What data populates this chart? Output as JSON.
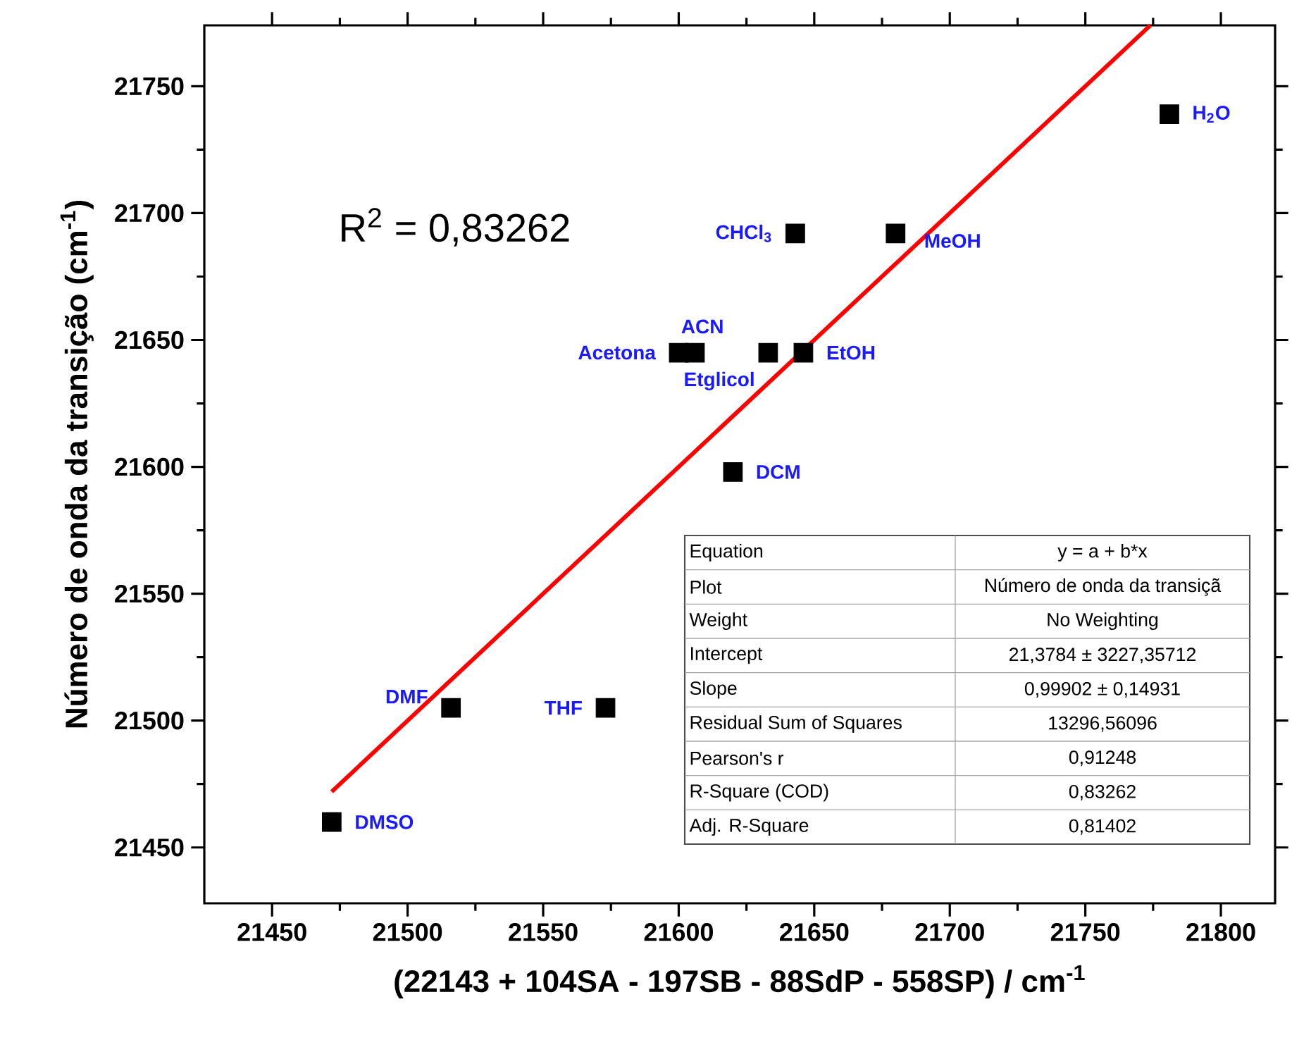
{
  "chart_data": {
    "type": "scatter",
    "xlabel": "(22143 + 104SA - 197SB - 88SdP - 558SP) / cm$^{-1}$",
    "ylabel": "Número de onda da transição (cm$^{-1}$)",
    "xlim": [
      21425,
      21820
    ],
    "ylim": [
      21428,
      21774
    ],
    "xticks": [
      21450,
      21500,
      21550,
      21600,
      21650,
      21700,
      21750,
      21800
    ],
    "yticks": [
      21450,
      21500,
      21550,
      21600,
      21650,
      21700,
      21750
    ],
    "series": [
      {
        "type": "scatter",
        "color": "#000000",
        "marker": "square",
        "x": [
          21472,
          21516,
          21573,
          21620,
          21600,
          21606,
          21633,
          21646,
          21643,
          21680,
          21781
        ],
        "values": [
          21460,
          21505,
          21505,
          21598,
          21645,
          21645,
          21645,
          21645,
          21692,
          21692,
          21739
        ]
      },
      {
        "type": "line",
        "color": "#ff0000",
        "x": [
          21472,
          21774
        ],
        "values": [
          21472,
          21774
        ]
      }
    ],
    "annotations": [
      "R$^{2}$ = 0,83262",
      "Equation",
      "y = a + b*x",
      "Plot",
      "Número de onda da transiçã",
      "Weight",
      "No Weighting",
      "Intercept",
      "21,3784 ± 3227,35712",
      "Slope",
      "0,99902 ± 0,14931",
      "Residual Sum of Squares",
      "13296,56096",
      "Pearson's r",
      "0,91248",
      "R-Square (COD)",
      "0,83262",
      "Adj. R-Square",
      "0,81402",
      {
        "text": "DMSO",
        "x": 21472,
        "y": 21460
      },
      {
        "text": "DMF",
        "x": 21516,
        "y": 21505
      },
      {
        "text": "THF",
        "x": 21573,
        "y": 21505
      },
      {
        "text": "DCM",
        "x": 21620,
        "y": 21598
      },
      {
        "text": "Acetona",
        "x": 21600,
        "y": 21645
      },
      {
        "text": "ACN",
        "x": 21606,
        "y": 21645
      },
      {
        "text": "Etglicol",
        "x": 21633,
        "y": 21645
      },
      {
        "text": "EtOH",
        "x": 21646,
        "y": 21645
      },
      {
        "text": "CHCl$_{3}$",
        "x": 21643,
        "y": 21692
      },
      {
        "text": "MeOH",
        "x": 21680,
        "y": 21692
      },
      {
        "text": "H$_{2}$O",
        "x": 21781,
        "y": 21739
      }
    ]
  }
}
